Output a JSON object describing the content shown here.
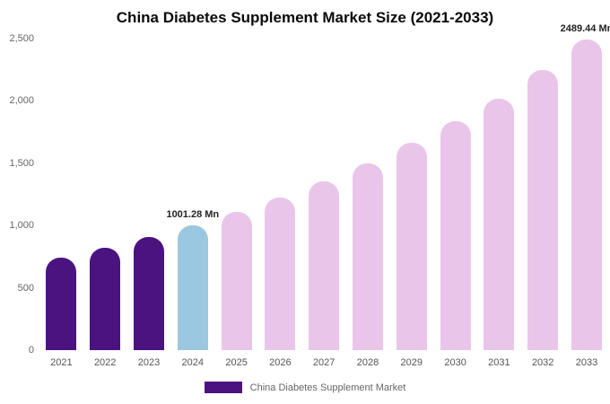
{
  "chart_data": {
    "type": "bar",
    "title": "China Diabetes Supplement Market Size (2021-2033)",
    "categories": [
      "2021",
      "2022",
      "2023",
      "2024",
      "2025",
      "2026",
      "2027",
      "2028",
      "2029",
      "2030",
      "2031",
      "2032",
      "2033"
    ],
    "values": [
      739,
      818,
      905,
      1001.28,
      1108,
      1226,
      1357,
      1501,
      1661,
      1838,
      2017,
      2250,
      2489.44
    ],
    "bar_colors": [
      "#4b1380",
      "#4b1380",
      "#4b1380",
      "#9cc7e0",
      "#e9c6e9",
      "#e9c6e9",
      "#e9c6e9",
      "#e9c6e9",
      "#e9c6e9",
      "#e9c6e9",
      "#e9c6e9",
      "#e9c6e9",
      "#e9c6e9"
    ],
    "colors": {
      "historical": "#4b1380",
      "current_year": "#9cc7e0",
      "forecast": "#e9c6e9"
    },
    "xlabel": "",
    "ylabel": "",
    "ylim": [
      0,
      2500
    ],
    "ytick_labels": [
      "0",
      "500",
      "1,000",
      "1,500",
      "2,000",
      "2,500"
    ],
    "ytick_values": [
      0,
      500,
      1000,
      1500,
      2000,
      2500
    ],
    "grid": false,
    "annotations": [
      {
        "index": 3,
        "text": "1001.28 Mn"
      },
      {
        "index": 12,
        "text": "2489.44 Mn"
      }
    ],
    "legend_position": "bottom",
    "legend": [
      {
        "label": "China Diabetes Supplement Market",
        "color": "#4b1380"
      }
    ]
  }
}
